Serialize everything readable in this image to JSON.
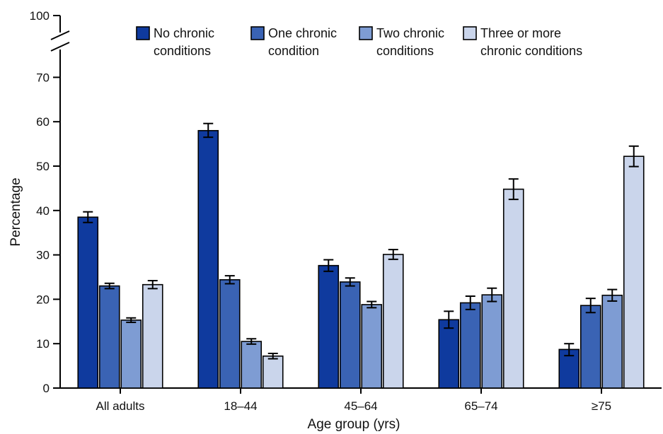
{
  "chart_data": {
    "type": "bar",
    "xlabel": "Age group (yrs)",
    "ylabel": "Percentage",
    "ylim": [
      0,
      100
    ],
    "axis_break": true,
    "yticks": [
      "0",
      "10",
      "20",
      "30",
      "40",
      "50",
      "60",
      "70",
      "100"
    ],
    "categories": [
      "All adults",
      "18–44",
      "45–64",
      "65–74",
      "≥75"
    ],
    "legend_position": "top",
    "series": [
      {
        "name": [
          "No chronic",
          "conditions"
        ],
        "color": "#0f3a9e",
        "values": [
          38.5,
          58.0,
          27.6,
          15.4,
          8.7
        ],
        "ci": [
          [
            37.3,
            39.7
          ],
          [
            56.5,
            59.6
          ],
          [
            26.3,
            28.9
          ],
          [
            13.5,
            17.3
          ],
          [
            7.3,
            10.0
          ]
        ]
      },
      {
        "name": [
          "One chronic",
          "condition"
        ],
        "color": "#3a63b4",
        "values": [
          23.0,
          24.4,
          23.9,
          19.2,
          18.6
        ],
        "ci": [
          [
            22.4,
            23.6
          ],
          [
            23.5,
            25.3
          ],
          [
            23.0,
            24.8
          ],
          [
            17.7,
            20.7
          ],
          [
            17.0,
            20.2
          ]
        ]
      },
      {
        "name": [
          "Two chronic",
          "conditions"
        ],
        "color": "#7e9cd3",
        "values": [
          15.3,
          10.5,
          18.8,
          21.0,
          20.9
        ],
        "ci": [
          [
            14.8,
            15.8
          ],
          [
            9.9,
            11.1
          ],
          [
            18.1,
            19.5
          ],
          [
            19.5,
            22.5
          ],
          [
            19.6,
            22.2
          ]
        ]
      },
      {
        "name": [
          "Three or more",
          "chronic conditions"
        ],
        "color": "#cad5eb",
        "values": [
          23.3,
          7.2,
          30.1,
          44.8,
          52.2
        ],
        "ci": [
          [
            22.4,
            24.2
          ],
          [
            6.6,
            7.8
          ],
          [
            29.0,
            31.2
          ],
          [
            42.5,
            47.1
          ],
          [
            49.9,
            54.5
          ]
        ]
      }
    ]
  }
}
